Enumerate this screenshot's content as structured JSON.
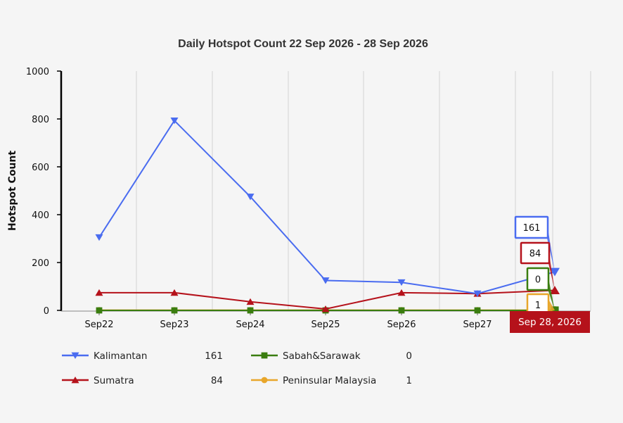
{
  "chart_data": {
    "type": "line",
    "title": "Daily Hotspot Count 22 Sep 2026 - 28 Sep 2026",
    "xlabel": "",
    "ylabel": "Hotspot Count",
    "ylim": [
      0,
      1000
    ],
    "yticks": [
      "0",
      "200",
      "400",
      "600",
      "800",
      "1000"
    ],
    "categories": [
      "Sep22",
      "Sep23",
      "Sep24",
      "Sep25",
      "Sep26",
      "Sep27",
      "Sep28"
    ],
    "x_tick_labels": [
      "Sep22",
      "Sep23",
      "Sep24",
      "Sep25",
      "Sep26",
      "Sep27"
    ],
    "grid": "vertical",
    "legend_position": "bottom-left",
    "series": [
      {
        "name": "Kalimantan",
        "color": "#4a6cf0",
        "marker": "triangle-down",
        "legend_value": "161",
        "values": [
          305,
          793,
          475,
          125,
          117,
          70,
          161
        ]
      },
      {
        "name": "Sumatra",
        "color": "#b5121b",
        "marker": "triangle-up",
        "legend_value": "84",
        "values": [
          74,
          74,
          36,
          6,
          74,
          70,
          84
        ]
      },
      {
        "name": "Sabah&Sarawak",
        "color": "#3a7d0f",
        "marker": "square",
        "legend_value": "0",
        "values": [
          0,
          0,
          0,
          0,
          0,
          0,
          0
        ]
      },
      {
        "name": "Peninsular Malaysia",
        "color": "#e8a62a",
        "marker": "circle",
        "legend_value": "1",
        "values": [
          1,
          1,
          1,
          1,
          1,
          1,
          1
        ]
      }
    ],
    "tooltip": {
      "x_label": "Sep 28, 2026",
      "x_label_color": "#b5121b",
      "values": [
        "161",
        "84",
        "0",
        "1"
      ]
    }
  }
}
